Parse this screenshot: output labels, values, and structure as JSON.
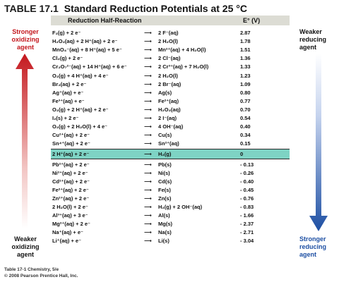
{
  "table": {
    "number": "TABLE 17.1",
    "title": "Standard Reduction Potentials at 25 °C",
    "col_reaction": "Reduction Half-Reaction",
    "col_potential": "E° (V)"
  },
  "labels": {
    "stronger_oxidizing": [
      "Stronger",
      "oxidizing",
      "agent"
    ],
    "weaker_oxidizing": [
      "Weaker",
      "oxidizing",
      "agent"
    ],
    "weaker_reducing": [
      "Weaker",
      "reducing",
      "agent"
    ],
    "stronger_reducing": [
      "Stronger",
      "reducing",
      "agent"
    ]
  },
  "colors": {
    "red_arrow": "#c4171d",
    "blue_arrow": "#1d4fa3",
    "highlight": "#7ed3c4",
    "header_bar": "#dcdcd4"
  },
  "rows": [
    {
      "reactants": "F₂(g) + 2 e⁻",
      "products": "2 F⁻(aq)",
      "e": "2.87"
    },
    {
      "reactants": "H₂O₂(aq) + 2 H⁺(aq) + 2 e⁻",
      "products": "2 H₂O(l)",
      "e": "1.78"
    },
    {
      "reactants": "MnO₄⁻(aq) + 8 H⁺(aq) + 5 e⁻",
      "products": "Mn²⁺(aq) + 4 H₂O(l)",
      "e": "1.51"
    },
    {
      "reactants": "Cl₂(g) + 2 e⁻",
      "products": "2 Cl⁻(aq)",
      "e": "1.36"
    },
    {
      "reactants": "Cr₂O₇²⁻(aq) + 14 H⁺(aq) + 6 e⁻",
      "products": "2 Cr³⁺(aq) + 7 H₂O(l)",
      "e": "1.33"
    },
    {
      "reactants": "O₂(g) + 4 H⁺(aq) + 4 e⁻",
      "products": "2 H₂O(l)",
      "e": "1.23"
    },
    {
      "reactants": "Br₂(aq) + 2 e⁻",
      "products": "2 Br⁻(aq)",
      "e": "1.09"
    },
    {
      "reactants": "Ag⁺(aq) + e⁻",
      "products": "Ag(s)",
      "e": "0.80"
    },
    {
      "reactants": "Fe³⁺(aq) + e⁻",
      "products": "Fe²⁺(aq)",
      "e": "0.77"
    },
    {
      "reactants": "O₂(g) + 2 H⁺(aq) + 2 e⁻",
      "products": "H₂O₂(aq)",
      "e": "0.70"
    },
    {
      "reactants": "I₂(s) + 2 e⁻",
      "products": "2 I⁻(aq)",
      "e": "0.54"
    },
    {
      "reactants": "O₂(g) + 2 H₂O(l) + 4 e⁻",
      "products": "4 OH⁻(aq)",
      "e": "0.40"
    },
    {
      "reactants": "Cu²⁺(aq) + 2 e⁻",
      "products": "Cu(s)",
      "e": "0.34"
    },
    {
      "reactants": "Sn⁴⁺(aq) + 2 e⁻",
      "products": "Sn²⁺(aq)",
      "e": "0.15"
    },
    {
      "reactants": "2 H⁺(aq) + 2 e⁻",
      "products": "H₂(g)",
      "e": "0",
      "highlight": true
    },
    {
      "reactants": "Pb²⁺(aq) + 2 e⁻",
      "products": "Pb(s)",
      "e": "- 0.13"
    },
    {
      "reactants": "Ni²⁺(aq) + 2 e⁻",
      "products": "Ni(s)",
      "e": "- 0.26"
    },
    {
      "reactants": "Cd²⁺(aq) + 2 e⁻",
      "products": "Cd(s)",
      "e": "- 0.40"
    },
    {
      "reactants": "Fe²⁺(aq) + 2 e⁻",
      "products": "Fe(s)",
      "e": "- 0.45"
    },
    {
      "reactants": "Zn²⁺(aq) + 2 e⁻",
      "products": "Zn(s)",
      "e": "- 0.76"
    },
    {
      "reactants": "2 H₂O(l) + 2 e⁻",
      "products": "H₂(g) + 2 OH⁻(aq)",
      "e": "- 0.83"
    },
    {
      "reactants": "Al³⁺(aq) + 3 e⁻",
      "products": "Al(s)",
      "e": "- 1.66"
    },
    {
      "reactants": "Mg²⁺(aq) + 2 e⁻",
      "products": "Mg(s)",
      "e": "- 2.37"
    },
    {
      "reactants": "Na⁺(aq) + e⁻",
      "products": "Na(s)",
      "e": "- 2.71"
    },
    {
      "reactants": "Li⁺(aq) + e⁻",
      "products": "Li(s)",
      "e": "- 3.04"
    }
  ],
  "footer": {
    "line1": "Table 17-1 Chemistry, 5/e",
    "line2": "© 2008 Pearson Prentice Hall, Inc."
  }
}
